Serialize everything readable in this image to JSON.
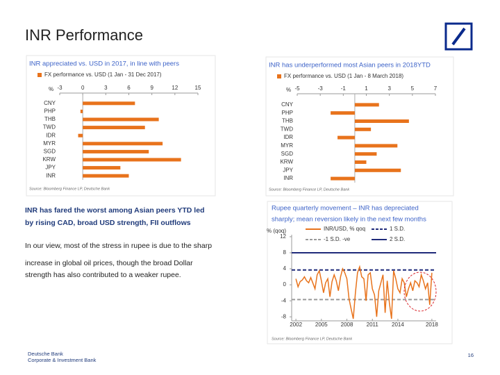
{
  "header": {
    "title": "INR Performance"
  },
  "chart_data": [
    {
      "type": "hbar",
      "title": "INR appreciated vs. USD in 2017, in line with peers",
      "unit": "%",
      "series": [
        {
          "name": "FX performance vs. USD (1 Jan - 31 Dec 2017)",
          "color": "#e8731c",
          "values": [
            6.8,
            -0.3,
            9.9,
            8.1,
            -0.6,
            10.4,
            8.6,
            12.8,
            4.9,
            6.0
          ]
        }
      ],
      "categories": [
        "CNY",
        "PHP",
        "THB",
        "TWD",
        "IDR",
        "MYR",
        "SGD",
        "KRW",
        "JPY",
        "INR"
      ],
      "xlim": [
        -3,
        15
      ],
      "xticks": [
        -3,
        0,
        3,
        6,
        9,
        12,
        15
      ],
      "source": "Source: Bloomberg Finance LP, Deutsche Bank"
    },
    {
      "type": "hbar",
      "title": "INR has underperformed most Asian peers in 2018YTD",
      "unit": "%",
      "series": [
        {
          "name": "FX performance vs. USD (1 Jan - 8 March 2018)",
          "color": "#e8731c",
          "values": [
            2.1,
            -2.1,
            4.7,
            1.4,
            -1.5,
            3.7,
            1.9,
            1.0,
            4.0,
            -2.1
          ]
        }
      ],
      "categories": [
        "CNY",
        "PHP",
        "THB",
        "TWD",
        "IDR",
        "MYR",
        "SGD",
        "KRW",
        "JPY",
        "INR"
      ],
      "xlim": [
        -5,
        7
      ],
      "xticks": [
        -5,
        -3,
        -1,
        1,
        3,
        5,
        7
      ],
      "source": "Source: Bloomberg Finance LP, Deutsche Bank"
    },
    {
      "type": "line",
      "title": [
        "Rupee quarterly movement – INR has depreciated",
        "sharply; mean reversion likely in the next few months"
      ],
      "y_label": "% (qoq)",
      "x": [
        2002,
        2002.25,
        2002.5,
        2002.75,
        2003,
        2003.25,
        2003.5,
        2003.75,
        2004,
        2004.25,
        2004.5,
        2004.75,
        2005,
        2005.25,
        2005.5,
        2005.75,
        2006,
        2006.25,
        2006.5,
        2006.75,
        2007,
        2007.25,
        2007.5,
        2007.75,
        2008,
        2008.25,
        2008.5,
        2008.75,
        2009,
        2009.25,
        2009.5,
        2009.75,
        2010,
        2010.25,
        2010.5,
        2010.75,
        2011,
        2011.25,
        2011.5,
        2011.75,
        2012,
        2012.25,
        2012.5,
        2012.75,
        2013,
        2013.25,
        2013.5,
        2013.75,
        2014,
        2014.25,
        2014.5,
        2014.75,
        2015,
        2015.25,
        2015.5,
        2015.75,
        2016,
        2016.25,
        2016.5,
        2016.75,
        2017,
        2017.25,
        2017.5,
        2017.75,
        2018
      ],
      "series": [
        {
          "name": "INR/USD, % qoq",
          "color": "#e8731c",
          "values": [
            1.5,
            -0.5,
            0.8,
            1.2,
            2.0,
            1.0,
            0.5,
            1.8,
            0.4,
            -1.0,
            2.5,
            3.5,
            1.0,
            -2.0,
            0.5,
            1.5,
            -3.0,
            0.8,
            2.5,
            1.0,
            -1.5,
            2.0,
            4.0,
            3.0,
            1.5,
            -3.5,
            -6.0,
            -8.5,
            -2.0,
            3.0,
            4.5,
            2.0,
            1.5,
            -4.0,
            2.5,
            3.0,
            -1.0,
            -2.5,
            -8.0,
            -1.5,
            0.5,
            2.5,
            -7.0,
            1.0,
            -4.5,
            -8.5,
            3.5,
            1.5,
            -1.0,
            -2.0,
            1.5,
            0.5,
            -3.0,
            -1.0,
            0.5,
            -1.5,
            1.0,
            0.5,
            -0.5,
            2.5,
            1.0,
            -1.0,
            0.5,
            -5.0,
            3.0
          ]
        }
      ],
      "reference_lines": [
        {
          "name": "1 S.D.",
          "value": 3.7,
          "color": "#1f2a7a",
          "dashed": true
        },
        {
          "name": "-1 S.D. -ve",
          "value": -3.7,
          "color": "#9a9a9a",
          "dashed": true
        },
        {
          "name": "2 S.D.",
          "value": 8.0,
          "color": "#1f2a7a",
          "dashed": false
        }
      ],
      "xlim": [
        2001.5,
        2018.5
      ],
      "xticks": [
        2002,
        2005,
        2008,
        2011,
        2014,
        2018
      ],
      "ylim": [
        -9,
        12.5
      ],
      "yticks": [
        12,
        8,
        4,
        0,
        -4,
        -8
      ],
      "source": "Source: Bloomberg Finance LP, Deutsche Bank"
    }
  ],
  "text": {
    "headline": [
      "INR has fared the worst among Asian peers YTD led",
      "by rising CAD, broad USD strength, FII outflows"
    ],
    "paragraph": [
      "In our view, most of the stress in rupee is due to the sharp",
      "increase in global oil prices, though the broad Dollar",
      "strength has also contributed to a weaker rupee."
    ]
  },
  "footer": {
    "company": "Deutsche Bank",
    "division": "Corporate & Investment Bank",
    "page": 16
  }
}
